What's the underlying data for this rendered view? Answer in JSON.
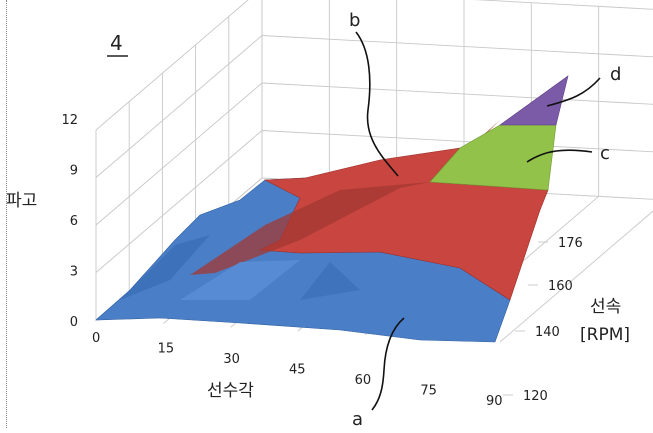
{
  "figure_number": "4",
  "chart_data": {
    "type": "3d-surface",
    "title": "",
    "xlabel": "선수각",
    "ylabel": "선속\n[RPM]",
    "zlabel": "파고",
    "x_ticks": [
      "0",
      "15",
      "30",
      "45",
      "60",
      "75",
      "90"
    ],
    "y_ticks": [
      "120",
      "140",
      "160",
      "176"
    ],
    "z_ticks": [
      "0",
      "3",
      "6",
      "9",
      "12"
    ],
    "xlim": [
      0,
      90
    ],
    "ylim": [
      120,
      180
    ],
    "zlim": [
      0,
      12
    ],
    "grid": true,
    "bands": [
      {
        "label": "a",
        "color": "#4a7fc8",
        "z_range": [
          0,
          4
        ]
      },
      {
        "label": "b",
        "color": "#c9453f",
        "z_range": [
          4,
          8
        ]
      },
      {
        "label": "c",
        "color": "#92c24a",
        "z_range": [
          8,
          10
        ]
      },
      {
        "label": "d",
        "color": "#7b5aa8",
        "z_range": [
          10,
          12
        ]
      }
    ],
    "reference_labels": [
      "a",
      "b",
      "c",
      "d"
    ]
  }
}
